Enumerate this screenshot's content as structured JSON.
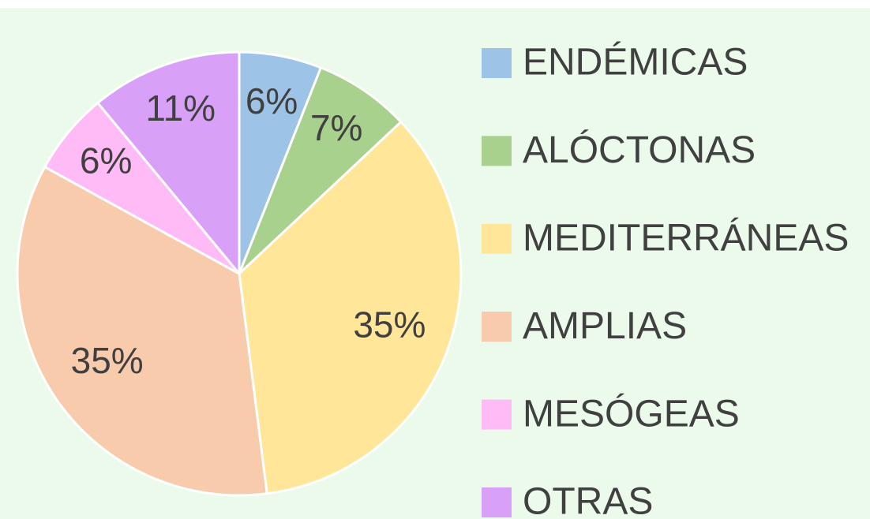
{
  "chart_data": {
    "type": "pie",
    "categories": [
      "ENDÉMICAS",
      "ALÓCTONAS",
      "MEDITERRÁNEAS",
      "AMPLIAS",
      "MESÓGEAS",
      "OTRAS"
    ],
    "values": [
      6,
      7,
      35,
      35,
      6,
      11
    ],
    "value_labels": [
      "6%",
      "7%",
      "35%",
      "35%",
      "6%",
      "11%"
    ],
    "colors": [
      "#9dc3e6",
      "#a9d18e",
      "#ffe699",
      "#f8cbad",
      "#ffbbf5",
      "#d9a0f7"
    ],
    "legend": "right"
  }
}
